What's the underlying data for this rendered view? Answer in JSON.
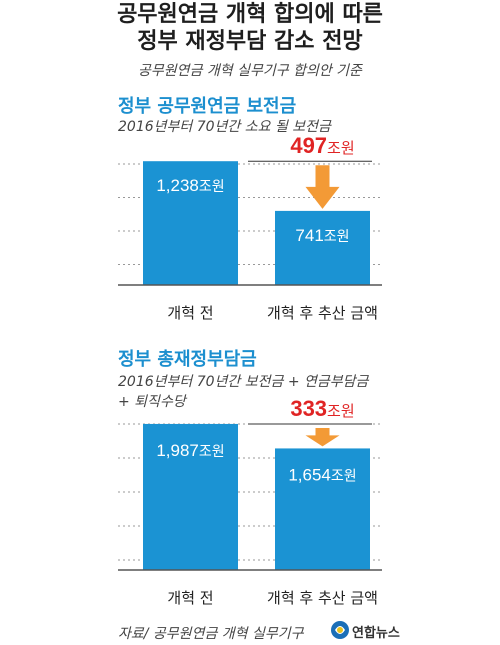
{
  "header": {
    "title_line1": "공무원연금 개혁 합의에 따른",
    "title_line2": "정부 재정부담 감소 전망",
    "subtitle": "공무원연금 개혁 실무기구 합의안 기준"
  },
  "chart_data": [
    {
      "type": "bar",
      "title": "정부 공무원연금 보전금",
      "subtitle": "2016년부터 70년간 소요 될 보전금",
      "categories": [
        "개혁 전",
        "개혁 후 추산 금액"
      ],
      "values": [
        1238,
        741
      ],
      "value_labels": [
        "1,238",
        "741"
      ],
      "unit": "조원",
      "difference": {
        "value": 497,
        "label": "497"
      },
      "ylim": [
        0,
        1300
      ],
      "grid": true,
      "colors": {
        "bar": "#1b93d3",
        "arrow": "#f39a36",
        "difference_text": "#e02424"
      }
    },
    {
      "type": "bar",
      "title": "정부 총재정부담금",
      "subtitle": "2016년부터 70년간 보전금 + 연금부담금",
      "subtitle_line2": "+ 퇴직수당",
      "categories": [
        "개혁 전",
        "개혁 후 추산 금액"
      ],
      "values": [
        1987,
        1654
      ],
      "value_labels": [
        "1,987",
        "1,654"
      ],
      "unit": "조원",
      "difference": {
        "value": 333,
        "label": "333"
      },
      "ylim": [
        0,
        2000
      ],
      "grid": true,
      "colors": {
        "bar": "#1b93d3",
        "arrow": "#f39a36",
        "difference_text": "#e02424"
      }
    }
  ],
  "footer": {
    "source": "자료/ 공무원연금 개혁 실무기구",
    "logo_text": "연합뉴스",
    "logo_icon": "yonhap-logo-icon"
  }
}
